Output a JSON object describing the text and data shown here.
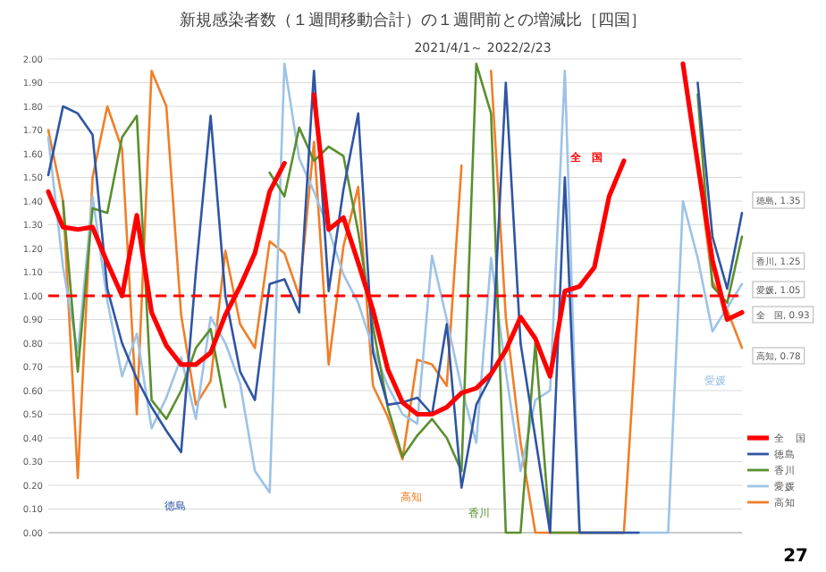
{
  "chart_data": {
    "type": "line",
    "title": "新規感染者数（１週間移動合計）の１週間前との増減比［四国］",
    "subtitle": "2021/4/1～ 2022/2/23",
    "categories": [
      null,
      null,
      null,
      null,
      null,
      null,
      null,
      null,
      null,
      null,
      null,
      null,
      null,
      null,
      null,
      null,
      null,
      null,
      null,
      null,
      null,
      null,
      null,
      null,
      null,
      null,
      null,
      null,
      null,
      null,
      null,
      null,
      null,
      null,
      null,
      null,
      null,
      null,
      null,
      null,
      null,
      null,
      null,
      null,
      null,
      null,
      null,
      null
    ],
    "ylim": [
      0,
      2
    ],
    "yticks": [
      {
        "value": 0,
        "label": "0.00"
      },
      {
        "value": 0.1,
        "label": "0.10"
      },
      {
        "value": 0.2,
        "label": "0.20"
      },
      {
        "value": 0.3,
        "label": "0.30"
      },
      {
        "value": 0.4,
        "label": "0.40"
      },
      {
        "value": 0.5,
        "label": "0.50"
      },
      {
        "value": 0.6,
        "label": "0.60"
      },
      {
        "value": 0.7,
        "label": "0.70"
      },
      {
        "value": 0.8,
        "label": "0.80"
      },
      {
        "value": 0.9,
        "label": "0.90"
      },
      {
        "value": 1,
        "label": "1.00"
      },
      {
        "value": 1.1,
        "label": "1.10"
      },
      {
        "value": 1.2,
        "label": "1.20"
      },
      {
        "value": 1.3,
        "label": "1.30"
      },
      {
        "value": 1.4,
        "label": "1.40"
      },
      {
        "value": 1.5,
        "label": "1.50"
      },
      {
        "value": 1.6,
        "label": "1.60"
      },
      {
        "value": 1.7,
        "label": "1.70"
      },
      {
        "value": 1.8,
        "label": "1.80"
      },
      {
        "value": 1.9,
        "label": "1.90"
      },
      {
        "value": 2,
        "label": "2.00"
      }
    ],
    "grid": "y",
    "legend": "bottom right",
    "line_style": "solid",
    "ref_lines": [
      {
        "axis": "y",
        "value": 1,
        "color": "#ff0000",
        "line_style": "dashed"
      }
    ],
    "series": [
      {
        "name": "全　国",
        "color": "#ff0000",
        "values": [
          1.44,
          1.29,
          1.28,
          1.29,
          1.14,
          1.0,
          1.34,
          0.93,
          0.79,
          0.71,
          0.71,
          0.76,
          0.92,
          1.04,
          1.18,
          1.44,
          1.56,
          null,
          1.85,
          1.28,
          1.33,
          1.14,
          0.94,
          0.69,
          0.55,
          0.5,
          0.5,
          0.53,
          0.59,
          0.61,
          0.67,
          0.77,
          0.91,
          0.82,
          0.66,
          1.02,
          1.04,
          1.12,
          1.42,
          1.57,
          null,
          null,
          null,
          1.98,
          1.56,
          1.15,
          0.9,
          0.93
        ]
      },
      {
        "name": "徳島",
        "color": "#2f55a4",
        "values": [
          1.51,
          1.8,
          1.77,
          1.68,
          1.03,
          0.8,
          0.65,
          0.53,
          0.43,
          0.34,
          1.1,
          1.76,
          1.0,
          0.68,
          0.56,
          1.05,
          1.07,
          0.93,
          1.95,
          1.02,
          1.45,
          1.77,
          0.76,
          0.54,
          0.55,
          0.57,
          0.5,
          0.88,
          0.19,
          0.54,
          0.66,
          1.9,
          0.8,
          0.4,
          0.0,
          1.5,
          0.0,
          0.0,
          0.0,
          0.0,
          0.0,
          null,
          null,
          null,
          1.9,
          1.25,
          1.03,
          1.35
        ]
      },
      {
        "name": "香川",
        "color": "#5a8f2e",
        "values": [
          null,
          1.4,
          0.68,
          1.37,
          1.35,
          1.67,
          1.76,
          0.56,
          0.48,
          0.6,
          0.78,
          0.86,
          0.53,
          null,
          null,
          1.52,
          1.42,
          1.71,
          1.57,
          1.63,
          1.59,
          1.27,
          0.87,
          0.53,
          0.32,
          0.41,
          0.48,
          0.4,
          0.26,
          1.98,
          1.77,
          0.0,
          0.0,
          0.8,
          0.0,
          0.0,
          0.0,
          0.0,
          0.0,
          0.0,
          null,
          null,
          null,
          null,
          1.85,
          1.04,
          0.97,
          1.25
        ]
      },
      {
        "name": "愛媛",
        "color": "#9dc3e6",
        "values": [
          1.67,
          1.12,
          0.76,
          1.42,
          0.98,
          0.66,
          0.84,
          0.44,
          0.57,
          0.74,
          0.48,
          0.91,
          0.8,
          0.63,
          0.26,
          0.17,
          1.98,
          1.58,
          1.44,
          1.28,
          1.09,
          0.97,
          0.78,
          0.62,
          0.5,
          0.46,
          1.17,
          0.9,
          0.61,
          0.38,
          1.16,
          0.68,
          0.26,
          0.56,
          0.6,
          1.95,
          0.0,
          0.0,
          0.0,
          0.0,
          0.0,
          0.0,
          0.0,
          1.4,
          1.16,
          0.85,
          0.95,
          1.05
        ]
      },
      {
        "name": "高知",
        "color": "#f07f28",
        "values": [
          1.7,
          1.4,
          0.23,
          1.5,
          1.8,
          1.62,
          0.5,
          1.95,
          1.8,
          0.92,
          0.54,
          0.64,
          1.19,
          0.88,
          0.78,
          1.23,
          1.18,
          1.0,
          1.65,
          0.71,
          1.21,
          1.46,
          0.62,
          0.49,
          0.31,
          0.73,
          0.71,
          0.62,
          1.55,
          null,
          1.95,
          0.91,
          0.38,
          0.0,
          0.0,
          0.0,
          0.0,
          0.0,
          0.0,
          0.0,
          1.0,
          null,
          null,
          null,
          1.55,
          1.06,
          0.94,
          0.78
        ]
      }
    ],
    "annotations": [
      "全　国",
      "徳島",
      "香川",
      "愛媛",
      "高知",
      "全　国, 0.93",
      "徳島, 1.35",
      "香川, 1.25",
      "愛媛, 1.05",
      "高知, 0.78",
      "27"
    ]
  }
}
